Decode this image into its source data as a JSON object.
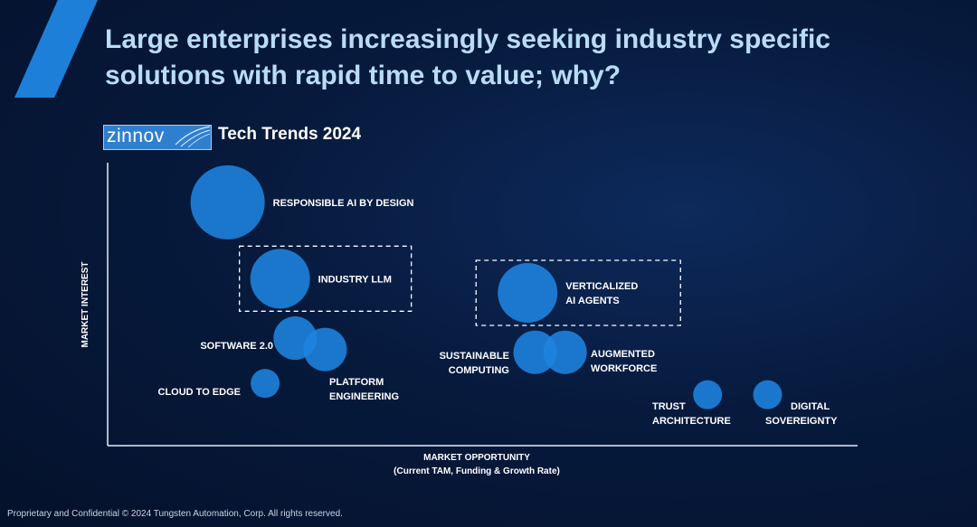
{
  "title_line1": "Large enterprises increasingly seeking industry specific",
  "title_line2": "solutions with rapid time to value; why?",
  "logo_text": "zinnov",
  "subtitle": "Tech Trends 2024",
  "footer": "Proprietary and Confidential © 2024 Tungsten Automation, Corp. All rights reserved.",
  "colors": {
    "bubble": "#1e84e0",
    "accent": "#1e7fd8",
    "title": "#b9dcf5"
  },
  "chart_data": {
    "type": "scatter",
    "title": "Tech Trends 2024",
    "xlabel": "MARKET OPPORTUNITY",
    "xlabel_sub": "(Current TAM, Funding & Growth Rate)",
    "ylabel": "MARKET INTEREST",
    "xlim": [
      0,
      100
    ],
    "ylim": [
      0,
      100
    ],
    "grid": false,
    "points": [
      {
        "name": "Responsible AI by Design",
        "label": [
          "RESPONSIBLE AI BY DESIGN"
        ],
        "x": 16,
        "y": 86,
        "size": 41,
        "label_pos": "right",
        "highlight": false
      },
      {
        "name": "Industry LLM",
        "label": [
          "INDUSTRY LLM"
        ],
        "x": 23,
        "y": 59,
        "size": 33,
        "label_pos": "right",
        "highlight": true
      },
      {
        "name": "Software 2.0",
        "label": [
          "SOFTWARE 2.0"
        ],
        "x": 25,
        "y": 38,
        "size": 24,
        "label_pos": "left",
        "highlight": false
      },
      {
        "name": "Platform Engineering",
        "label": [
          "PLATFORM",
          "ENGINEERING"
        ],
        "x": 29,
        "y": 34,
        "size": 24,
        "label_pos": "below",
        "highlight": false
      },
      {
        "name": "Cloud to Edge",
        "label": [
          "CLOUD TO EDGE"
        ],
        "x": 21,
        "y": 22,
        "size": 16,
        "label_pos": "left",
        "highlight": false
      },
      {
        "name": "Verticalized AI Agents",
        "label": [
          "VERTICALIZED",
          "AI AGENTS"
        ],
        "x": 56,
        "y": 54,
        "size": 33,
        "label_pos": "right",
        "highlight": true
      },
      {
        "name": "Sustainable Computing",
        "label": [
          "SUSTAINABLE",
          "COMPUTING"
        ],
        "x": 57,
        "y": 33,
        "size": 24,
        "label_pos": "left",
        "highlight": false
      },
      {
        "name": "Augmented Workforce",
        "label": [
          "AUGMENTED",
          "WORKFORCE"
        ],
        "x": 61,
        "y": 33,
        "size": 24,
        "label_pos": "right",
        "highlight": false
      },
      {
        "name": "Trust Architecture",
        "label": [
          "TRUST",
          "ARCHITECTURE"
        ],
        "x": 80,
        "y": 18,
        "size": 16,
        "label_pos": "below",
        "highlight": false
      },
      {
        "name": "Digital Sovereignty",
        "label": [
          "DIGITAL",
          "SOVEREIGNTY"
        ],
        "x": 88,
        "y": 18,
        "size": 16,
        "label_pos": "right-below",
        "highlight": false
      }
    ]
  }
}
